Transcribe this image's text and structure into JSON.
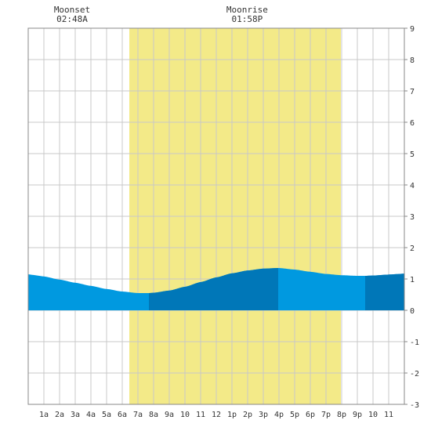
{
  "chart_data": {
    "type": "area",
    "x_unit": "hour of day",
    "x_range": [
      0,
      24
    ],
    "ylim": [
      -3,
      9
    ],
    "y_ticks": [
      "-3",
      "-2",
      "-1",
      "0",
      "1",
      "2",
      "3",
      "4",
      "5",
      "6",
      "7",
      "8",
      "9"
    ],
    "x_ticks": [
      {
        "hour": 1,
        "label": "1a"
      },
      {
        "hour": 2,
        "label": "2a"
      },
      {
        "hour": 3,
        "label": "3a"
      },
      {
        "hour": 4,
        "label": "4a"
      },
      {
        "hour": 5,
        "label": "5a"
      },
      {
        "hour": 6,
        "label": "6a"
      },
      {
        "hour": 7,
        "label": "7a"
      },
      {
        "hour": 8,
        "label": "8a"
      },
      {
        "hour": 9,
        "label": "9a"
      },
      {
        "hour": 10,
        "label": "10"
      },
      {
        "hour": 11,
        "label": "11"
      },
      {
        "hour": 12,
        "label": "12"
      },
      {
        "hour": 13,
        "label": "1p"
      },
      {
        "hour": 14,
        "label": "2p"
      },
      {
        "hour": 15,
        "label": "3p"
      },
      {
        "hour": 16,
        "label": "4p"
      },
      {
        "hour": 17,
        "label": "5p"
      },
      {
        "hour": 18,
        "label": "6p"
      },
      {
        "hour": 19,
        "label": "7p"
      },
      {
        "hour": 20,
        "label": "8p"
      },
      {
        "hour": 21,
        "label": "9p"
      },
      {
        "hour": 22,
        "label": "10"
      },
      {
        "hour": 23,
        "label": "11"
      }
    ],
    "daylight": {
      "start_hour": 6.45,
      "end_hour": 19.95
    },
    "tide": {
      "hours": [
        0,
        1,
        2,
        3,
        4,
        5,
        6,
        7,
        7.7,
        8,
        9,
        10,
        11,
        12,
        13,
        14,
        15,
        15.95,
        16,
        17,
        18,
        19,
        20,
        21,
        21.5,
        22,
        23,
        24
      ],
      "heights": [
        1.15,
        1.08,
        0.98,
        0.88,
        0.78,
        0.68,
        0.6,
        0.55,
        0.55,
        0.56,
        0.63,
        0.75,
        0.9,
        1.05,
        1.18,
        1.27,
        1.33,
        1.35,
        1.35,
        1.3,
        1.23,
        1.16,
        1.12,
        1.1,
        1.1,
        1.11,
        1.14,
        1.17
      ]
    },
    "dark_bands": [
      {
        "start_hour": 7.7,
        "end_hour": 15.95
      },
      {
        "start_hour": 21.5,
        "end_hour": 24
      }
    ],
    "moon_events": [
      {
        "hour": 2.8,
        "title": "Moonset",
        "time": "02:48A"
      },
      {
        "hour": 13.97,
        "title": "Moonrise",
        "time": "01:58P"
      }
    ],
    "colors": {
      "daylight": "#f3ea88",
      "tide": "#0099e0",
      "tide_dark": "#0077b8",
      "grid": "#c8c8c8",
      "frame": "#888888",
      "text": "#333333"
    }
  }
}
